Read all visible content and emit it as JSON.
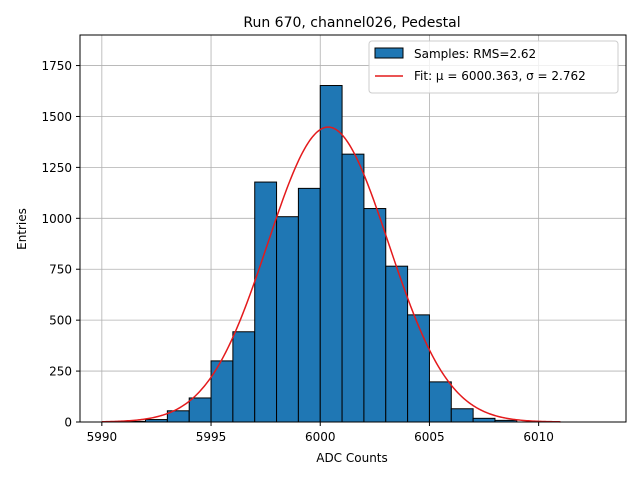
{
  "chart_data": {
    "type": "bar",
    "title": "Run 670, channel026, Pedestal",
    "xlabel": "ADC Counts",
    "ylabel": "Entries",
    "xlim": [
      5989,
      6014
    ],
    "ylim": [
      0,
      1900
    ],
    "xticks": [
      5990,
      5995,
      6000,
      6005,
      6010
    ],
    "yticks": [
      0,
      250,
      500,
      750,
      1000,
      1250,
      1500,
      1750
    ],
    "grid": true,
    "legend_position": "top-right",
    "bins": [
      {
        "x0": 5991,
        "x1": 5992,
        "count": 3
      },
      {
        "x0": 5992,
        "x1": 5993,
        "count": 12
      },
      {
        "x0": 5993,
        "x1": 5994,
        "count": 55
      },
      {
        "x0": 5994,
        "x1": 5995,
        "count": 118
      },
      {
        "x0": 5995,
        "x1": 5996,
        "count": 300
      },
      {
        "x0": 5996,
        "x1": 5997,
        "count": 443
      },
      {
        "x0": 5997,
        "x1": 5998,
        "count": 1178
      },
      {
        "x0": 5998,
        "x1": 5999,
        "count": 1008
      },
      {
        "x0": 5999,
        "x1": 6000,
        "count": 1147
      },
      {
        "x0": 6000,
        "x1": 6001,
        "count": 1652
      },
      {
        "x0": 6001,
        "x1": 6002,
        "count": 1315
      },
      {
        "x0": 6002,
        "x1": 6003,
        "count": 1048
      },
      {
        "x0": 6003,
        "x1": 6004,
        "count": 765
      },
      {
        "x0": 6004,
        "x1": 6005,
        "count": 526
      },
      {
        "x0": 6005,
        "x1": 6006,
        "count": 197
      },
      {
        "x0": 6006,
        "x1": 6007,
        "count": 65
      },
      {
        "x0": 6007,
        "x1": 6008,
        "count": 18
      },
      {
        "x0": 6008,
        "x1": 6009,
        "count": 8
      }
    ],
    "fit": {
      "mu": 6000.363,
      "sigma": 2.762,
      "amplitude": 1448,
      "x_range": [
        5990,
        6011
      ]
    },
    "series": [
      {
        "name": "Samples: RMS=2.62",
        "kind": "histogram",
        "color": "#1f77b4"
      },
      {
        "name": "Fit: μ = 6000.363, σ = 2.762",
        "kind": "line",
        "color": "#e41a1c"
      }
    ]
  }
}
